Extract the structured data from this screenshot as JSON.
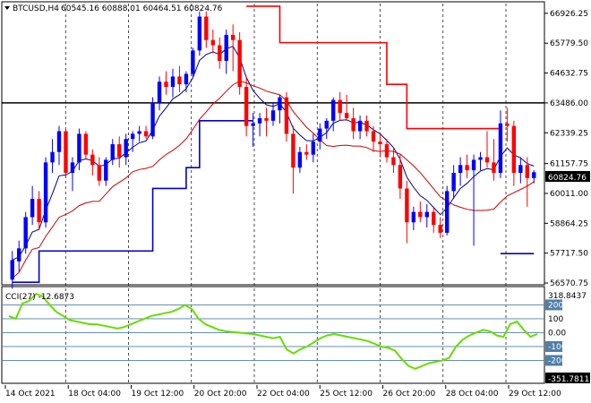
{
  "header": {
    "symbol": "BTCUSD,H4",
    "ohlc": "60545.16 60888.01 60464.51 60824.76"
  },
  "indicator": {
    "label": "CCI(27) -12.6873",
    "top_value": "318.8437",
    "bottom_value": "-351.7811"
  },
  "colors": {
    "bull": "#0000ff",
    "bear": "#ff0000",
    "stop_up": "#0000cc",
    "stop_down": "#ff0000",
    "ma_fast": "#000080",
    "ma_slow": "#cc0000",
    "cci": "#66dd00",
    "level_line": "#000000",
    "grid": "#000000"
  },
  "chart_data": [
    {
      "type": "candlestick",
      "symbol": "BTCUSD",
      "timeframe": "H4",
      "y_ticks": [
        "66926.25",
        "65779.50",
        "64632.75",
        "63486.00",
        "62339.25",
        "61157.75",
        "60011.00",
        "58864.25",
        "57717.50",
        "56570.75"
      ],
      "ylim": [
        56570.75,
        67300
      ],
      "x_ticks": [
        "14 Oct 2021",
        "18 Oct 04:00",
        "19 Oct 12:00",
        "20 Oct 20:00",
        "22 Oct 04:00",
        "25 Oct 12:00",
        "26 Oct 20:00",
        "28 Oct 04:00",
        "29 Oct 12:00"
      ],
      "current_price": "60824.76",
      "horizontal_level": 63486.0,
      "candles": [
        [
          56700,
          57800,
          56350,
          57450
        ],
        [
          57400,
          58200,
          57000,
          57900
        ],
        [
          57900,
          59300,
          57700,
          59100
        ],
        [
          59100,
          60300,
          58800,
          59800
        ],
        [
          59800,
          60100,
          58600,
          58900
        ],
        [
          58900,
          61400,
          58700,
          61200
        ],
        [
          61200,
          62100,
          60800,
          61600
        ],
        [
          61600,
          62600,
          61100,
          62400
        ],
        [
          62400,
          62500,
          60600,
          60800
        ],
        [
          60800,
          61400,
          60100,
          61200
        ],
        [
          61200,
          62500,
          60900,
          62300
        ],
        [
          62300,
          62400,
          61300,
          61500
        ],
        [
          61500,
          61700,
          60700,
          61100
        ],
        [
          61100,
          61400,
          60300,
          60500
        ],
        [
          60500,
          61400,
          60300,
          61300
        ],
        [
          61300,
          62100,
          61100,
          61900
        ],
        [
          61900,
          62200,
          61000,
          61400
        ],
        [
          61400,
          62300,
          61100,
          62100
        ],
        [
          62100,
          62400,
          61600,
          62300
        ],
        [
          62300,
          62600,
          62000,
          62400
        ],
        [
          62400,
          62600,
          62100,
          62200
        ],
        [
          62200,
          63700,
          62100,
          63500
        ],
        [
          63500,
          64500,
          63200,
          64300
        ],
        [
          64300,
          64700,
          63800,
          64100
        ],
        [
          64100,
          64800,
          63700,
          64500
        ],
        [
          64500,
          64900,
          63900,
          64200
        ],
        [
          64200,
          64700,
          63900,
          64600
        ],
        [
          64600,
          65600,
          64500,
          65500
        ],
        [
          65500,
          67000,
          65300,
          66800
        ],
        [
          66800,
          67000,
          65600,
          65900
        ],
        [
          65900,
          66300,
          65400,
          65700
        ],
        [
          65700,
          66000,
          64800,
          65100
        ],
        [
          65100,
          66300,
          64600,
          66100
        ],
        [
          66100,
          66500,
          64700,
          65900
        ],
        [
          65900,
          66200,
          63800,
          64100
        ],
        [
          64100,
          64500,
          62200,
          62600
        ],
        [
          62600,
          63100,
          61800,
          62700
        ],
        [
          62700,
          63100,
          62200,
          62900
        ],
        [
          62900,
          63300,
          62200,
          62800
        ],
        [
          62800,
          63500,
          62600,
          63200
        ],
        [
          63200,
          63800,
          62700,
          63700
        ],
        [
          63700,
          63900,
          62000,
          62300
        ],
        [
          62300,
          62600,
          60000,
          61000
        ],
        [
          61000,
          61800,
          60800,
          61600
        ],
        [
          61600,
          61900,
          61300,
          61500
        ],
        [
          61500,
          62300,
          61200,
          62000
        ],
        [
          62000,
          62700,
          61700,
          62500
        ],
        [
          62500,
          62900,
          62100,
          62800
        ],
        [
          62800,
          63700,
          62400,
          63600
        ],
        [
          63600,
          63900,
          62800,
          63100
        ],
        [
          63100,
          63800,
          62800,
          62900
        ],
        [
          62900,
          63300,
          62100,
          62400
        ],
        [
          62400,
          63000,
          62100,
          62800
        ],
        [
          62800,
          63000,
          62200,
          62400
        ],
        [
          62400,
          62600,
          61600,
          62000
        ],
        [
          62000,
          62300,
          61400,
          61900
        ],
        [
          61900,
          62100,
          61200,
          61400
        ],
        [
          61400,
          61800,
          60800,
          61100
        ],
        [
          61100,
          61500,
          59800,
          60200
        ],
        [
          60200,
          60500,
          58100,
          58900
        ],
        [
          58900,
          59500,
          58600,
          59300
        ],
        [
          59300,
          59700,
          58900,
          59100
        ],
        [
          59100,
          59600,
          58700,
          59300
        ],
        [
          59300,
          59500,
          58500,
          58800
        ],
        [
          58800,
          59100,
          58300,
          58500
        ],
        [
          58500,
          60300,
          58400,
          60100
        ],
        [
          60100,
          61100,
          59800,
          60800
        ],
        [
          60800,
          61400,
          60300,
          61100
        ],
        [
          61100,
          61500,
          60600,
          60900
        ],
        [
          60900,
          61500,
          58000,
          61300
        ],
        [
          61300,
          61600,
          60900,
          61400
        ],
        [
          61400,
          62400,
          61000,
          61200
        ],
        [
          61200,
          62100,
          60500,
          60800
        ],
        [
          60800,
          63200,
          60600,
          62700
        ],
        [
          62700,
          63300,
          62000,
          62600
        ],
        [
          62600,
          62800,
          60300,
          60800
        ],
        [
          60800,
          61400,
          60400,
          61100
        ],
        [
          61100,
          61400,
          59500,
          60600
        ],
        [
          60600,
          60900,
          60400,
          60825
        ]
      ],
      "series": [
        {
          "kind": "trailing-stop-upper",
          "segments": [
            [
              [
                0,
                62
              ],
              [
                [
                  null
                ]
              ]
            ]
          ]
        }
      ]
    },
    {
      "type": "line",
      "name": "CCI(27)",
      "y_ticks": [
        "200",
        "100",
        "0.00",
        "-100",
        "-200"
      ],
      "ylim": [
        -351.7811,
        318.8437
      ],
      "levels": [
        200,
        100,
        0,
        -100,
        -200
      ],
      "values": [
        120,
        100,
        210,
        230,
        280,
        260,
        200,
        150,
        120,
        90,
        80,
        70,
        60,
        60,
        50,
        40,
        30,
        40,
        60,
        80,
        100,
        120,
        130,
        140,
        150,
        170,
        200,
        170,
        100,
        60,
        40,
        20,
        10,
        5,
        0,
        -5,
        -10,
        -20,
        -30,
        -40,
        -30,
        -120,
        -150,
        -120,
        -100,
        -70,
        -40,
        -20,
        -10,
        -20,
        -30,
        -40,
        -50,
        -60,
        -80,
        -100,
        -110,
        -130,
        -190,
        -240,
        -260,
        -240,
        -220,
        -210,
        -200,
        -180,
        -100,
        -50,
        -20,
        0,
        20,
        10,
        -20,
        -30,
        60,
        80,
        20,
        -30,
        -10
      ]
    }
  ]
}
